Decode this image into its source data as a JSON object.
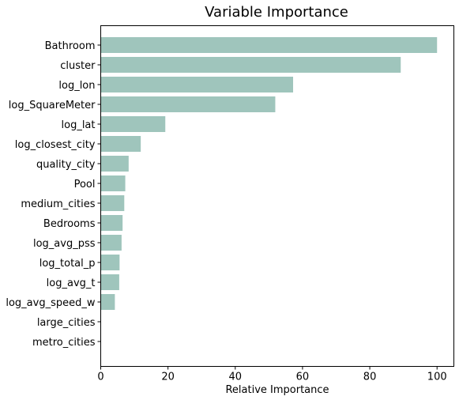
{
  "chart_data": {
    "type": "bar",
    "orientation": "horizontal",
    "title": "Variable Importance",
    "xlabel": "Relative Importance",
    "ylabel": "",
    "xlim": [
      0,
      105
    ],
    "xticks": [
      0,
      20,
      40,
      60,
      80,
      100
    ],
    "grid": false,
    "bar_color": "#9fc5bc",
    "categories": [
      "Bathroom",
      "cluster",
      "log_lon",
      "log_SquareMeter",
      "log_lat",
      "log_closest_city",
      "quality_city",
      "Pool",
      "medium_cities",
      "Bedrooms",
      "log_avg_pss",
      "log_total_p",
      "log_avg_t",
      "log_avg_speed_w",
      "large_cities",
      "metro_cities"
    ],
    "values": [
      100,
      89.2,
      57.2,
      51.9,
      19.2,
      11.9,
      8.3,
      7.3,
      7.0,
      6.5,
      6.2,
      5.6,
      5.5,
      4.2,
      0,
      0
    ]
  }
}
